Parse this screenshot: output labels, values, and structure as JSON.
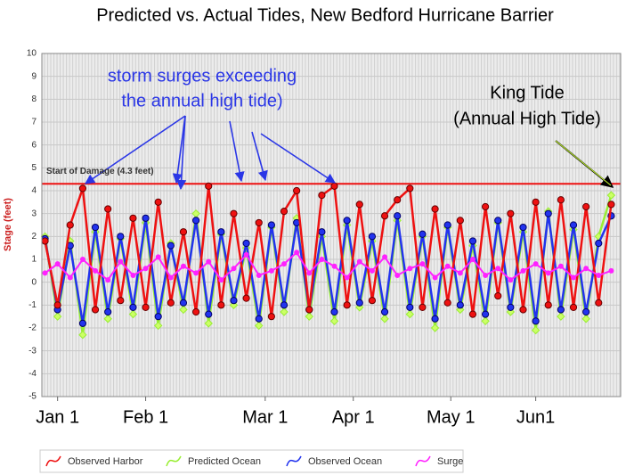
{
  "chart_data": {
    "type": "line",
    "title": "Predicted vs. Actual Tides, New Bedford Hurricane Barrier",
    "y_label": "Stage (feet)",
    "x": [
      -4,
      0,
      4,
      8,
      12,
      16,
      20,
      24,
      28,
      32,
      36,
      40,
      44,
      48,
      52,
      56,
      60,
      64,
      68,
      72,
      76,
      80,
      84,
      88,
      92,
      96,
      100,
      104,
      108,
      112,
      116,
      120,
      124,
      128,
      132,
      136,
      140,
      144,
      148,
      152,
      156,
      160,
      164,
      168,
      172,
      176
    ],
    "xlim": [
      -5,
      179
    ],
    "xticks": [
      {
        "value": 0,
        "label": "Jan 1"
      },
      {
        "value": 28,
        "label": "Feb 1"
      },
      {
        "value": 66,
        "label": "Mar 1"
      },
      {
        "value": 94,
        "label": "Apr 1"
      },
      {
        "value": 125,
        "label": "May 1"
      },
      {
        "value": 152,
        "label": "Jun1"
      }
    ],
    "ylim": [
      -5,
      10
    ],
    "yticks": [
      -5,
      -4,
      -3,
      -2,
      -1,
      0,
      1,
      2,
      3,
      4,
      5,
      6,
      7,
      8,
      9,
      10
    ],
    "grid": true,
    "legend": "bottom",
    "series": [
      {
        "name": "Predicted Ocean",
        "color": "#99ee33",
        "values": [
          2.0,
          -1.5,
          1.8,
          -2.3,
          2.2,
          -1.6,
          1.9,
          -1.4,
          2.6,
          -1.9,
          1.7,
          -1.2,
          3.0,
          -1.8,
          2.1,
          -1.0,
          1.5,
          -1.9,
          2.4,
          -1.3,
          2.8,
          -1.5,
          2.0,
          -1.7,
          2.5,
          -1.1,
          1.8,
          -1.6,
          2.7,
          -1.4,
          2.0,
          -2.0,
          2.4,
          -1.2,
          1.6,
          -1.7,
          2.6,
          -1.3,
          2.2,
          -2.1,
          3.1,
          -1.5,
          2.3,
          -1.6,
          2.0,
          3.8
        ]
      },
      {
        "name": "Observed Ocean",
        "color": "#2233ee",
        "values": [
          1.9,
          -1.2,
          1.6,
          -1.8,
          2.4,
          -1.3,
          2.0,
          -1.1,
          2.8,
          -1.5,
          1.6,
          -0.9,
          2.7,
          -1.4,
          2.2,
          -0.8,
          1.7,
          -1.6,
          2.5,
          -1.0,
          2.6,
          -1.2,
          2.2,
          -1.3,
          2.7,
          -0.9,
          2.0,
          -1.3,
          2.9,
          -1.1,
          2.1,
          -1.6,
          2.5,
          -1.0,
          1.8,
          -1.4,
          2.7,
          -1.1,
          2.4,
          -1.7,
          3.0,
          -1.2,
          2.5,
          -1.3,
          1.7,
          2.9
        ]
      },
      {
        "name": "Observed Harbor",
        "color": "#ee1111",
        "values": [
          1.8,
          -1.0,
          2.5,
          4.1,
          -1.2,
          3.2,
          -0.8,
          2.8,
          -1.1,
          3.5,
          -0.9,
          2.2,
          -1.3,
          4.2,
          -1.0,
          3.0,
          -0.7,
          2.6,
          -1.5,
          3.1,
          4.0,
          -1.2,
          3.8,
          4.2,
          -1.0,
          3.4,
          -0.8,
          2.9,
          3.6,
          4.1,
          -1.1,
          3.2,
          -0.9,
          2.7,
          -1.4,
          3.3,
          -0.6,
          3.0,
          -1.2,
          3.5,
          -1.0,
          3.6,
          -1.1,
          3.3,
          -0.9,
          3.4
        ]
      },
      {
        "name": "Surge",
        "color": "#ff22ff",
        "values": [
          0.4,
          0.8,
          0.2,
          1.0,
          0.5,
          0.1,
          0.9,
          0.3,
          0.6,
          1.1,
          0.2,
          0.7,
          0.4,
          0.9,
          0.1,
          0.6,
          1.2,
          0.3,
          0.5,
          0.8,
          1.3,
          0.4,
          1.0,
          0.7,
          0.2,
          0.9,
          0.5,
          1.1,
          0.3,
          0.6,
          0.8,
          0.2,
          0.7,
          0.4,
          1.0,
          0.3,
          0.6,
          0.1,
          0.5,
          0.8,
          0.4,
          0.7,
          0.2,
          0.6,
          0.3,
          0.5
        ]
      }
    ],
    "legend_order": [
      2,
      0,
      1,
      3
    ],
    "threshold": {
      "value": 4.3,
      "label": "Start of Damage (4.3 feet)",
      "color": "#ee1111"
    },
    "annotations": [
      "storm surges exceeding",
      "the annual high tide)",
      "King Tide",
      "(Annual High Tide)"
    ]
  }
}
